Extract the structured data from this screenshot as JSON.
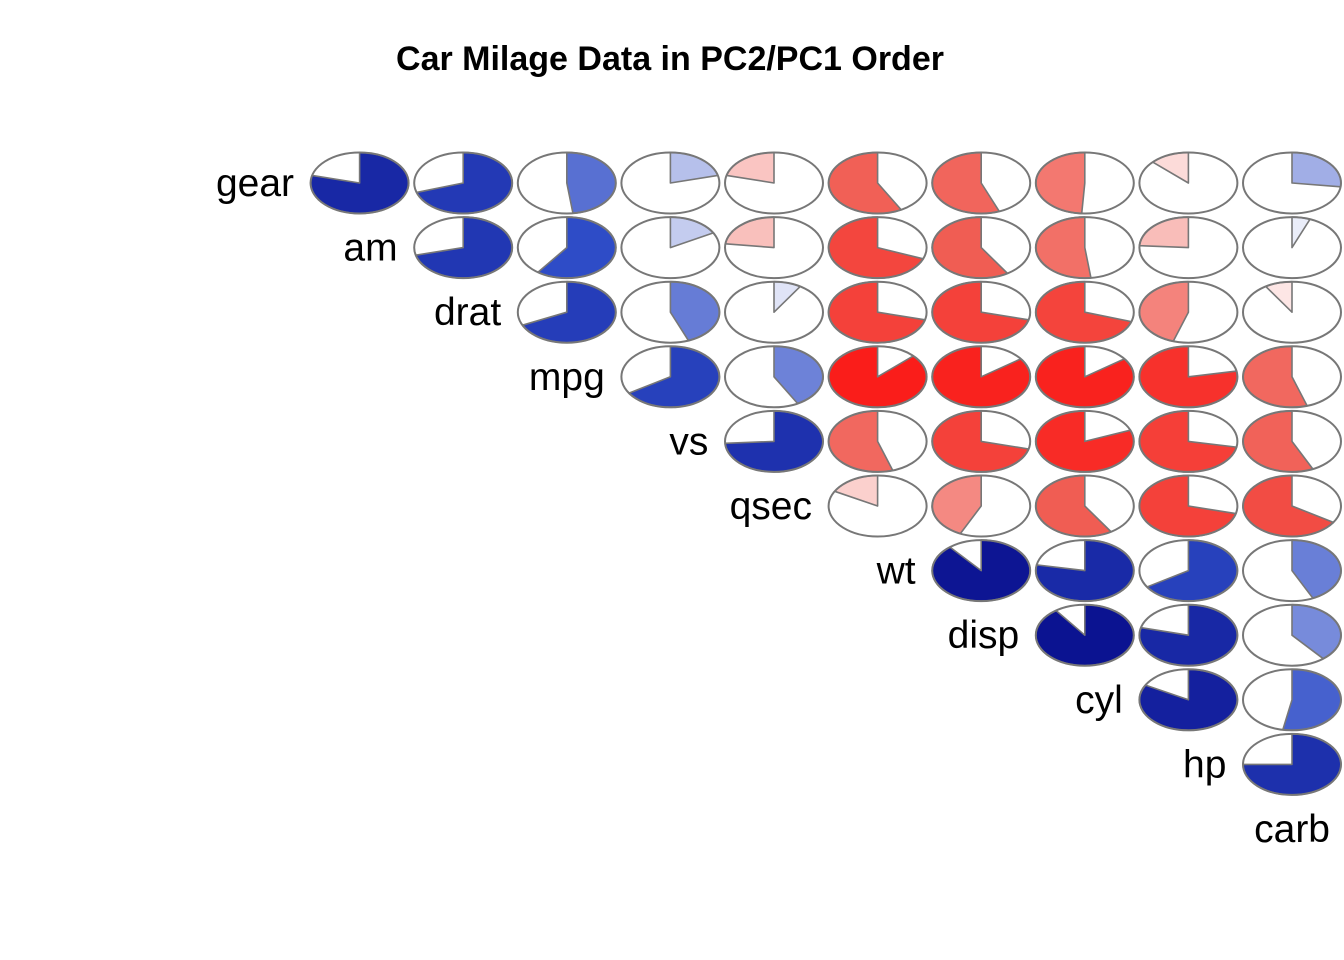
{
  "chart_data": {
    "type": "heatmap",
    "subtype": "correlation-pie-matrix (upper triangle, diagonal labels)",
    "title": "Car Milage Data in PC2/PC1 Order",
    "variables": [
      "gear",
      "am",
      "drat",
      "mpg",
      "vs",
      "qsec",
      "wt",
      "disp",
      "cyl",
      "hp",
      "carb"
    ],
    "value_range": [
      -1,
      1
    ],
    "encoding": "each off-diagonal cell is a pie whose filled fraction is |r|; blue = positive correlation, red = negative correlation; cells below the diagonal are blank",
    "matrix": [
      [
        null,
        0.79,
        0.7,
        0.48,
        0.21,
        -0.21,
        -0.58,
        -0.56,
        -0.49,
        -0.13,
        0.27
      ],
      [
        0.79,
        null,
        0.71,
        0.6,
        0.17,
        -0.23,
        -0.69,
        -0.59,
        -0.52,
        -0.24,
        0.06
      ],
      [
        0.7,
        0.71,
        null,
        0.68,
        0.44,
        0.09,
        -0.71,
        -0.71,
        -0.7,
        -0.45,
        -0.09
      ],
      [
        0.48,
        0.6,
        0.68,
        null,
        0.66,
        0.42,
        -0.87,
        -0.85,
        -0.85,
        -0.78,
        -0.55
      ],
      [
        0.21,
        0.17,
        0.44,
        0.66,
        null,
        0.74,
        -0.55,
        -0.71,
        -0.81,
        -0.72,
        -0.57
      ],
      [
        -0.21,
        -0.23,
        0.09,
        0.42,
        0.74,
        null,
        -0.17,
        -0.43,
        -0.59,
        -0.71,
        -0.66
      ],
      [
        -0.58,
        -0.69,
        -0.71,
        -0.87,
        -0.55,
        -0.17,
        null,
        0.89,
        0.78,
        0.66,
        0.43
      ],
      [
        -0.56,
        -0.59,
        -0.71,
        -0.85,
        -0.71,
        -0.43,
        0.89,
        null,
        0.9,
        0.79,
        0.39
      ],
      [
        -0.49,
        -0.52,
        -0.7,
        -0.85,
        -0.81,
        -0.59,
        0.78,
        0.9,
        null,
        0.83,
        0.53
      ],
      [
        -0.13,
        -0.24,
        -0.45,
        -0.78,
        -0.72,
        -0.71,
        0.66,
        0.79,
        0.83,
        null,
        0.75
      ],
      [
        0.27,
        0.06,
        -0.09,
        -0.55,
        -0.57,
        -0.66,
        0.43,
        0.39,
        0.53,
        0.75,
        null
      ]
    ],
    "colors": {
      "strong_positive": "#00007F",
      "positive": "#2E4CC7",
      "neutral": "#FFFFFF",
      "negative": "#F05A50",
      "strong_negative": "#FF0000"
    }
  }
}
